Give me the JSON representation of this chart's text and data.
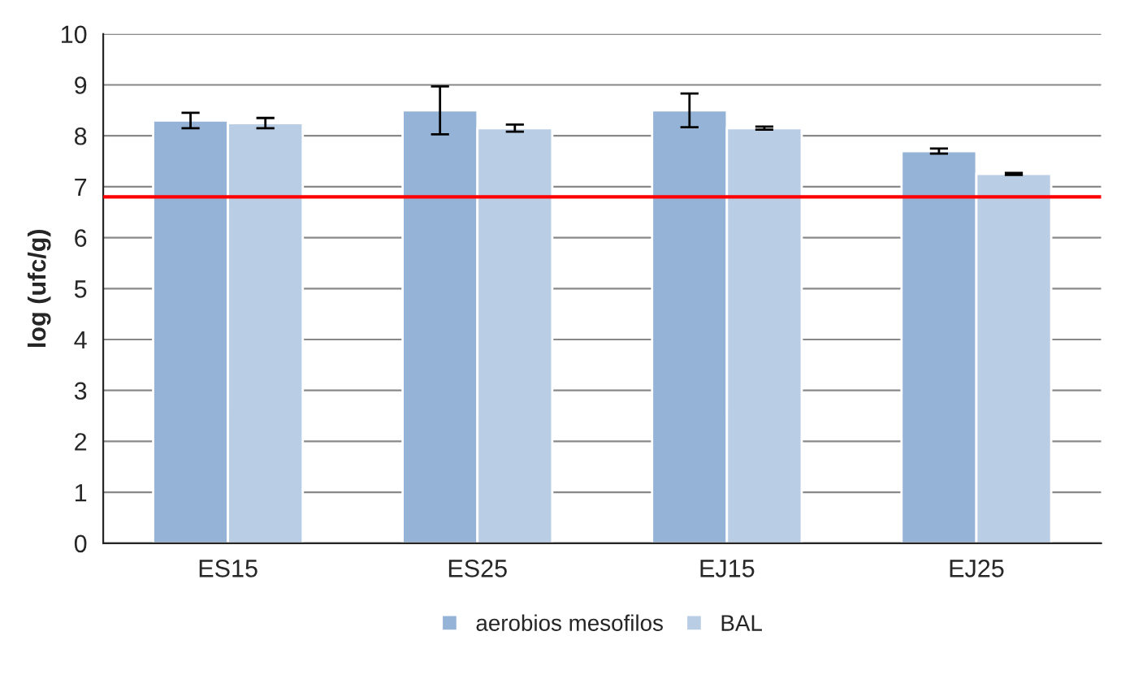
{
  "chart_data": {
    "type": "bar",
    "ylabel": "log (ufc/g)",
    "categories": [
      "ES15",
      "ES25",
      "EJ15",
      "EJ25"
    ],
    "series": [
      {
        "name": "aerobios mesofilos",
        "color": "#95b3d7",
        "values": [
          8.3,
          8.5,
          8.5,
          7.7
        ],
        "errors": [
          0.15,
          0.47,
          0.33,
          0.05
        ]
      },
      {
        "name": "BAL",
        "color": "#b9cde5",
        "values": [
          8.25,
          8.15,
          8.15,
          7.25
        ],
        "errors": [
          0.1,
          0.07,
          0.03,
          0.02
        ]
      }
    ],
    "ylim": [
      0,
      10
    ],
    "yticks": [
      0,
      1,
      2,
      3,
      4,
      5,
      6,
      7,
      8,
      9,
      10
    ],
    "grid": "y",
    "legend": "bottom",
    "ref_lines": [
      {
        "axis": "y",
        "value": 6.8,
        "color": "#ff0000"
      }
    ]
  }
}
